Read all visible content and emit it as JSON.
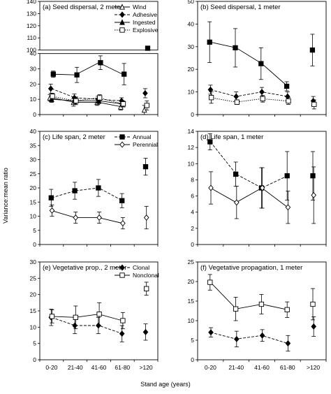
{
  "figure": {
    "y_axis_label": "Variance:mean ratio",
    "x_axis_label": "Stand age (years)"
  },
  "chart_data": [
    {
      "type": "line",
      "title": "(a) Seed dispersal, 2 meter",
      "categories": [
        "0-20",
        "21-40",
        "41-60",
        "61-80",
        ">120"
      ],
      "ylim": [
        0,
        140
      ],
      "axis_break": [
        40,
        100
      ],
      "yticks": [
        0,
        10,
        20,
        30,
        40,
        100,
        110,
        120,
        130,
        140
      ],
      "show_xticklabels": false,
      "legend": "top-right",
      "series": [
        {
          "name": "Wind",
          "marker": "triangle-open",
          "dash": "solid",
          "values": [
            11,
            8,
            8,
            5,
            3
          ],
          "err": [
            2,
            2.5,
            2,
            2,
            3
          ]
        },
        {
          "name": "Adhesive",
          "marker": "diamond",
          "dash": "dashed",
          "values": [
            17,
            11,
            10,
            9,
            14
          ],
          "err": [
            3,
            2.5,
            2,
            2,
            3
          ]
        },
        {
          "name": "Ingested",
          "marker": "triangle",
          "dash": "solid",
          "values": [
            10,
            9,
            9,
            7,
            null
          ],
          "err": [
            2,
            2,
            2,
            2,
            0
          ]
        },
        {
          "name": "Explosive",
          "marker": "square-open",
          "dash": "dotted",
          "values": [
            12,
            9,
            11,
            7,
            6
          ],
          "err": [
            2,
            2.5,
            2,
            2,
            3
          ]
        },
        {
          "name": "",
          "marker": "square",
          "dash": "solid",
          "values": [
            26.5,
            26,
            34,
            26.5,
            101.5
          ],
          "err": [
            2,
            5,
            4.5,
            7,
            1.5
          ]
        }
      ]
    },
    {
      "type": "line",
      "title": "(b) Seed dispersal, 1 meter",
      "categories": [
        "0-20",
        "21-40",
        "41-60",
        "61-80",
        ">120"
      ],
      "ylim": [
        0,
        50
      ],
      "yticks": [
        0,
        10,
        20,
        30,
        40,
        50
      ],
      "show_xticklabels": false,
      "series": [
        {
          "name": "",
          "marker": "square",
          "dash": "solid",
          "values": [
            32,
            29.5,
            22.5,
            12.5,
            28.5
          ],
          "err": [
            9,
            8.5,
            7,
            2,
            7
          ]
        },
        {
          "name": "",
          "marker": "diamond",
          "dash": "dashed",
          "values": [
            11,
            8,
            10,
            8,
            6
          ],
          "err": [
            2,
            2,
            2,
            2,
            2
          ]
        },
        {
          "name": "",
          "marker": "square-open",
          "dash": "dotted",
          "values": [
            7.5,
            5.5,
            7,
            6,
            4.5
          ],
          "err": [
            2.5,
            1,
            1.5,
            1.5,
            2
          ]
        }
      ]
    },
    {
      "type": "line",
      "title": "(c) Life span, 2 meter",
      "categories": [
        "0-20",
        "21-40",
        "41-60",
        "61-80",
        ">120"
      ],
      "ylim": [
        0,
        40
      ],
      "yticks": [
        0,
        5,
        10,
        15,
        20,
        25,
        30,
        35,
        40
      ],
      "show_xticklabels": false,
      "legend": "top-right",
      "series": [
        {
          "name": "Annual",
          "marker": "square",
          "dash": "dashed",
          "values": [
            16.5,
            19,
            20,
            15.5,
            27.5
          ],
          "err": [
            3,
            3,
            3,
            2.5,
            3
          ]
        },
        {
          "name": "Perennial",
          "marker": "diamond-open",
          "dash": "solid",
          "values": [
            12,
            9.5,
            9.5,
            7.5,
            9.5
          ],
          "err": [
            2,
            2,
            2,
            2,
            4
          ]
        }
      ]
    },
    {
      "type": "line",
      "title": "(d) Life span, 1 meter",
      "categories": [
        "0-20",
        "21-40",
        "41-60",
        "61-80",
        ">120"
      ],
      "ylim": [
        0,
        14
      ],
      "yticks": [
        0,
        2,
        4,
        6,
        8,
        10,
        12,
        14
      ],
      "show_xticklabels": false,
      "series": [
        {
          "name": "",
          "marker": "square",
          "dash": "dashed",
          "values": [
            12.7,
            8.7,
            7,
            8.5,
            8.5
          ],
          "err": [
            1,
            1.5,
            2.5,
            3,
            3
          ]
        },
        {
          "name": "",
          "marker": "diamond-open",
          "dash": "solid",
          "values": [
            7,
            5.2,
            7,
            4.6,
            6.1
          ],
          "err": [
            2,
            2,
            2.5,
            2,
            3.5
          ]
        }
      ]
    },
    {
      "type": "line",
      "title": "(e) Vegetative prop., 2 meter",
      "categories": [
        "0-20",
        "21-40",
        "41-60",
        "61-80",
        ">120"
      ],
      "ylim": [
        0,
        30
      ],
      "yticks": [
        0,
        5,
        10,
        15,
        20,
        25,
        30
      ],
      "show_xticklabels": true,
      "legend": "top-right",
      "series": [
        {
          "name": "Clonal",
          "marker": "diamond",
          "dash": "dashed",
          "values": [
            13,
            10.5,
            10.5,
            8,
            8.5
          ],
          "err": [
            2.5,
            2.5,
            2.5,
            2.5,
            2.5
          ]
        },
        {
          "name": "Nonclonal",
          "marker": "square-open",
          "dash": "solid",
          "values": [
            13.3,
            13,
            14,
            12,
            21.8
          ],
          "err": [
            2,
            3.5,
            3.5,
            2.5,
            2
          ]
        }
      ]
    },
    {
      "type": "line",
      "title": "(f) Vegetative propagation, 1 meter",
      "categories": [
        "0-20",
        "21-40",
        "41-60",
        "61-80",
        ">120"
      ],
      "ylim": [
        0,
        25
      ],
      "yticks": [
        0,
        5,
        10,
        15,
        20,
        25
      ],
      "show_xticklabels": true,
      "series": [
        {
          "name": "",
          "marker": "square-open",
          "dash": "solid",
          "values": [
            19.8,
            13,
            14.2,
            12.8,
            14.2
          ],
          "err": [
            2,
            3,
            2.5,
            2,
            4
          ]
        },
        {
          "name": "",
          "marker": "diamond",
          "dash": "dashed",
          "values": [
            7,
            5.3,
            6.2,
            4.2,
            8.5
          ],
          "err": [
            1.2,
            2,
            1.5,
            2,
            2.5
          ]
        }
      ]
    }
  ]
}
